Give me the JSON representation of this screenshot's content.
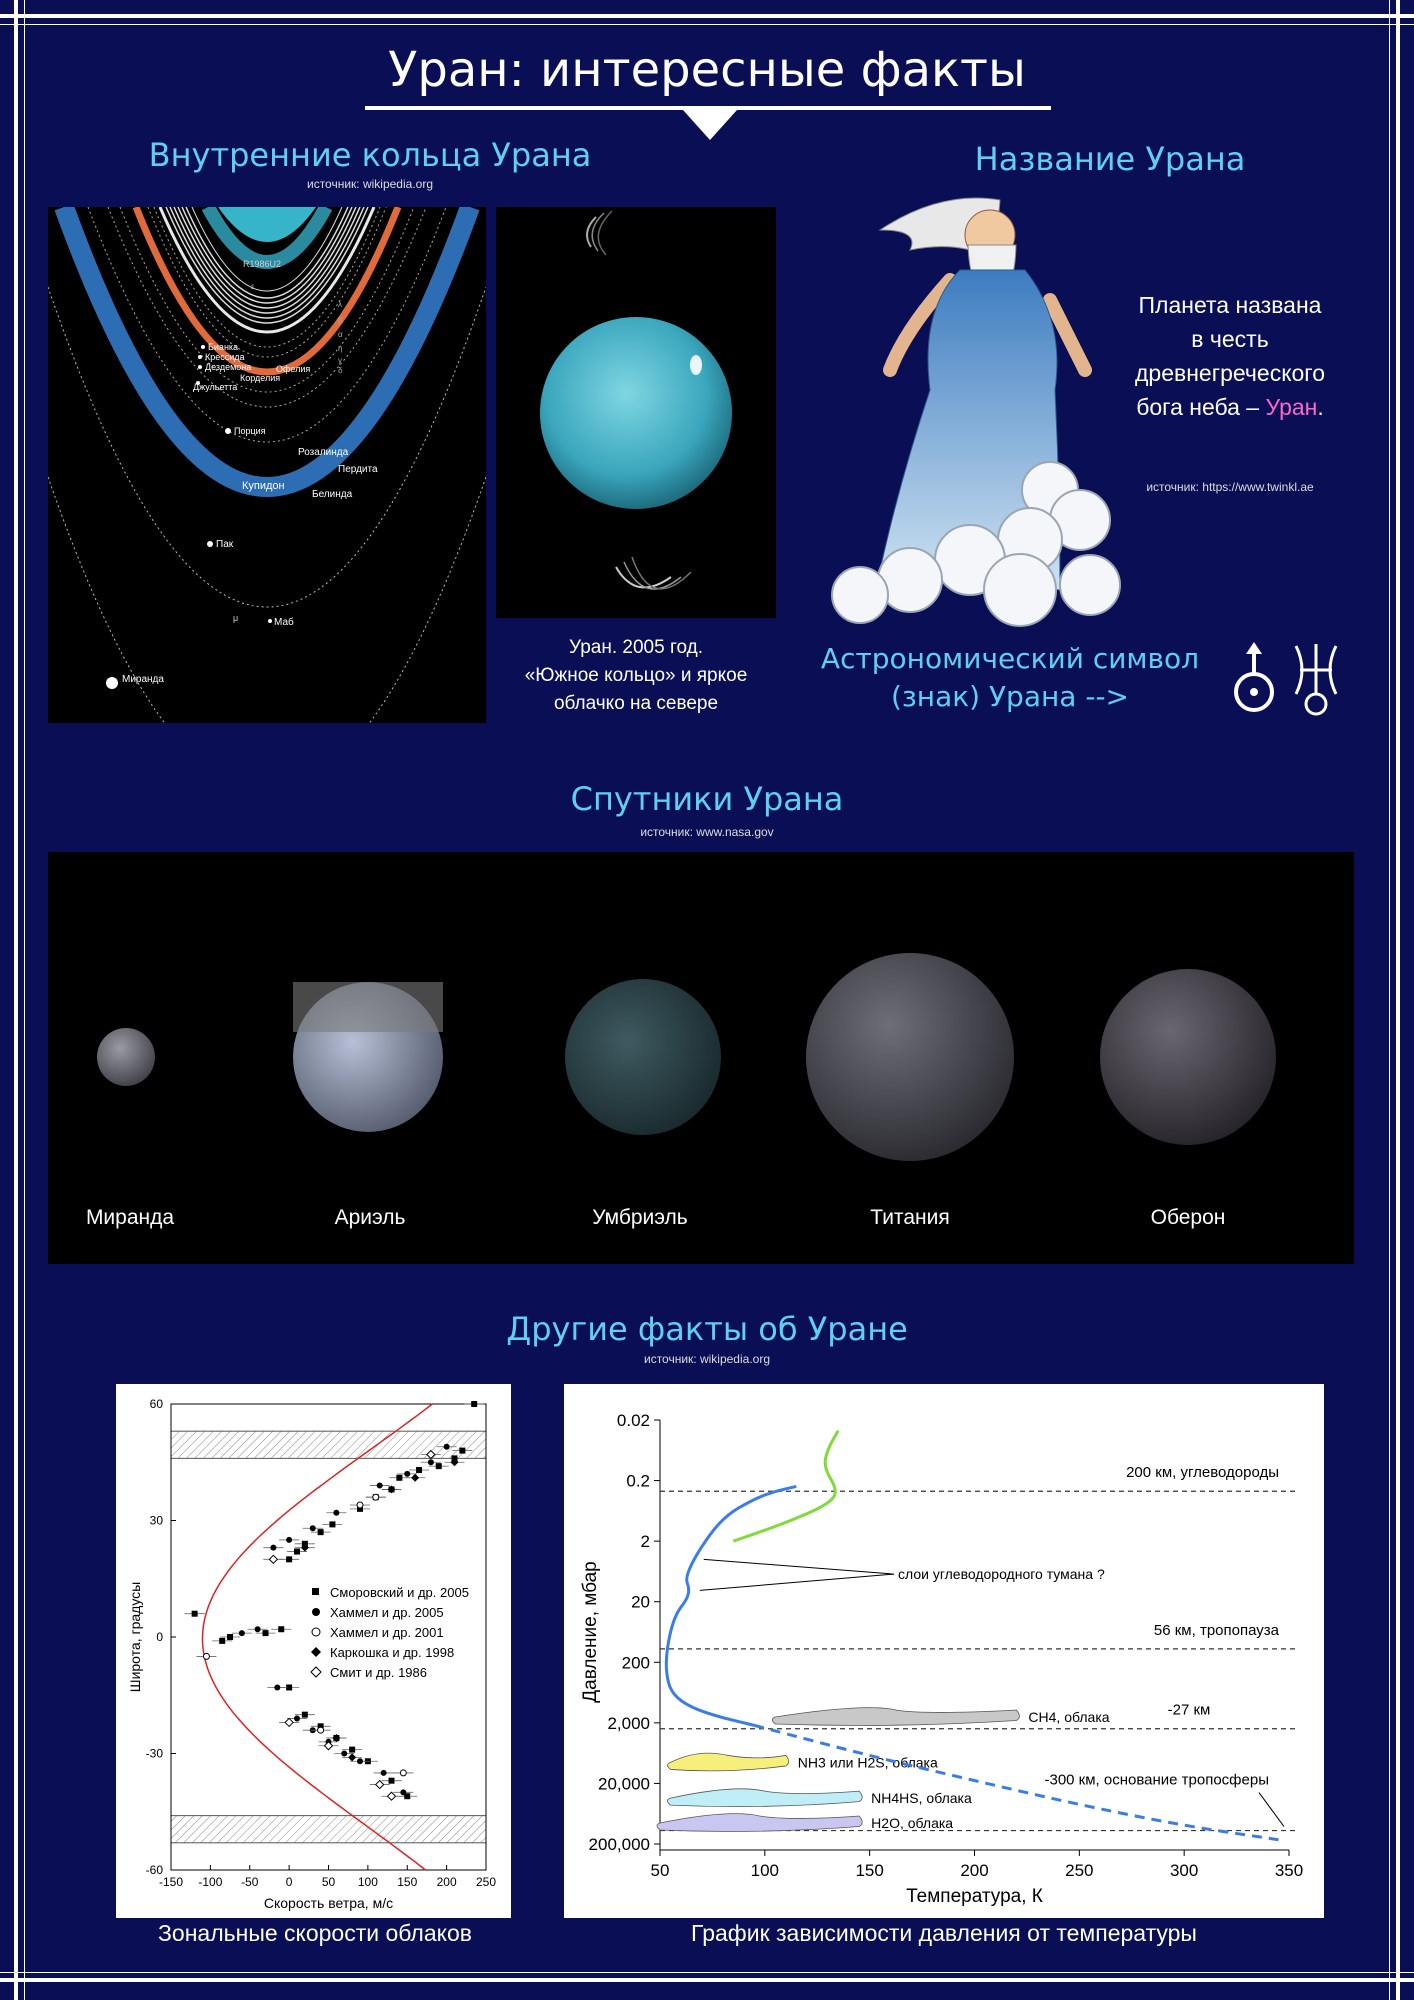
{
  "title": "Уран: интересные факты",
  "rings": {
    "heading": "Внутренние кольца Урана",
    "source": "источник: wikipedia.org",
    "labels": [
      "R1986U2",
      "Бианка",
      "Крессида",
      "Дездемона",
      "Джульетта",
      "Корделия",
      "Офелия",
      "Порция",
      "Розалинда",
      "Пердита",
      "Купидон",
      "Белинда",
      "Пак",
      "Маб",
      "Миранда"
    ],
    "greek": [
      "ε",
      "λ",
      "β",
      "α",
      "η",
      "γ",
      "δ",
      "μ"
    ]
  },
  "photo": {
    "caption_line1": "Уран. 2005 год.",
    "caption_line2": "«Южное кольцо» и яркое",
    "caption_line3": "облачко на севере"
  },
  "name": {
    "heading": "Название Урана",
    "text_line1": "Планета названа",
    "text_line2": "в честь",
    "text_line3": "древнегреческого",
    "text_line4_prefix": "бога неба – ",
    "text_line4_highlight": "Уран",
    "text_line4_suffix": ".",
    "source": "источник: https://www.twinkl.ae",
    "highlight_color": "#ff66cc"
  },
  "symbol": {
    "text_line1": "Астрономический символ",
    "text_line2": "(знак) Урана -->"
  },
  "moons": {
    "heading": "Спутники Урана",
    "source": "источник: www.nasa.gov",
    "names": [
      "Миранда",
      "Ариэль",
      "Умбриэль",
      "Титания",
      "Оберон"
    ]
  },
  "facts": {
    "heading": "Другие факты об Уране",
    "source": "источник: wikipedia.org"
  },
  "chart_data": [
    {
      "type": "scatter",
      "caption": "Зональные скорости облаков",
      "xlabel": "Скорость ветра, м/с",
      "ylabel": "Широта, градусы",
      "xlim": [
        -150,
        250
      ],
      "ylim": [
        -60,
        60
      ],
      "xticks": [
        "-150",
        "-100",
        "-50",
        "0",
        "50",
        "100",
        "150",
        "200",
        "250"
      ],
      "yticks": [
        "60",
        "30",
        "0",
        "-30",
        "-60"
      ],
      "legend": [
        "Сморовский и др. 2005",
        "Хаммел и др. 2005",
        "Хаммел и др. 2001",
        "Каркошка и др. 1998",
        "Смит и др. 1986"
      ],
      "legend_position": "right",
      "hatched_bands": [
        [
          46,
          53
        ],
        [
          -53,
          -46
        ]
      ],
      "model_curve": {
        "x": [
          -110,
          -95,
          -50,
          5,
          60,
          120,
          170,
          200,
          200,
          160,
          100,
          45,
          -5,
          -60,
          -100,
          -110
        ],
        "y": [
          0,
          14,
          25,
          30,
          34,
          40,
          46,
          54,
          60,
          -10,
          -25,
          -30,
          -32,
          -37,
          -43,
          -50
        ]
      },
      "series": [
        {
          "name": "Сморовский и др. 2005",
          "marker": "square",
          "x": [
            235,
            220,
            210,
            190,
            165,
            140,
            130,
            110,
            90,
            55,
            40,
            20,
            10,
            0,
            -10,
            -30,
            -75,
            -85,
            -120,
            0,
            20,
            40,
            60,
            80,
            100,
            130,
            150
          ],
          "y": [
            60,
            48,
            46,
            44,
            43,
            41,
            38,
            36,
            33,
            29,
            27,
            24,
            22,
            20,
            2,
            1,
            0,
            -1,
            6,
            -13,
            -20,
            -23,
            -26,
            -29,
            -32,
            -37,
            -41
          ]
        },
        {
          "name": "Хаммел и др. 2005",
          "marker": "circle",
          "x": [
            200,
            180,
            150,
            115,
            60,
            30,
            0,
            -20,
            -40,
            -60,
            -15,
            10,
            30,
            50,
            70,
            90,
            120,
            145
          ],
          "y": [
            49,
            45,
            42,
            39,
            32,
            28,
            25,
            23,
            2,
            1,
            -13,
            -21,
            -24,
            -27,
            -30,
            -32,
            -35,
            -40
          ]
        },
        {
          "name": "Хаммел и др. 2001",
          "marker": "circle-open",
          "x": [
            -105,
            110,
            90,
            145,
            40
          ],
          "y": [
            -5,
            36,
            34,
            -35,
            -24
          ]
        },
        {
          "name": "Каркошка и др. 1998",
          "marker": "diamond",
          "x": [
            210,
            160,
            130,
            20,
            60,
            80
          ],
          "y": [
            45,
            41,
            38,
            23,
            -26,
            -31
          ]
        },
        {
          "name": "Смит и др. 1986",
          "marker": "diamond-open",
          "x": [
            180,
            -20,
            0,
            50,
            115,
            130
          ],
          "y": [
            47,
            20,
            -22,
            -28,
            -38,
            -41
          ]
        }
      ]
    },
    {
      "type": "line",
      "caption": "График зависимости давления от температуры",
      "xlabel": "Температура, К",
      "ylabel": "Давление, мбар",
      "xlim": [
        50,
        350
      ],
      "ylim_log": [
        0.02,
        200000
      ],
      "xticks": [
        "50",
        "100",
        "150",
        "200",
        "250",
        "300",
        "350"
      ],
      "yticks": [
        "0.02",
        "0.2",
        "2",
        "20",
        "200",
        "2,000",
        "20,000",
        "200,000"
      ],
      "annotations": [
        "200 км, углеводороды",
        "56 км, тропопауза",
        "-27 км",
        "-300 км, основание тропосферы",
        "слои углеводородного тумана ?"
      ],
      "levels": [
        {
          "label": "200 км, углеводороды",
          "pressure": 0.3
        },
        {
          "label": "56 км, тропопауза",
          "pressure": 120
        },
        {
          "label": "-27 км",
          "pressure": 2500
        },
        {
          "label": "-300 км, основание тропосферы",
          "pressure": 120000
        }
      ],
      "clouds": [
        {
          "label": "CH4, облака",
          "pressure": 1600,
          "x": [
            105,
            220
          ],
          "color": "#c8c8c8"
        },
        {
          "label": "NH3 или H2S, облака",
          "pressure": 9000,
          "x": [
            55,
            110
          ],
          "color": "#f6f07a"
        },
        {
          "label": "NH4HS, облака",
          "pressure": 35000,
          "x": [
            55,
            145
          ],
          "color": "#bfeef6"
        },
        {
          "label": "H2O, облака",
          "pressure": 90000,
          "x": [
            50,
            145
          ],
          "color": "#c9c6f2"
        }
      ],
      "series": [
        {
          "name": "",
          "color": "#3a7de8",
          "temperature": [
            115,
            105,
            95,
            80,
            68,
            62,
            64,
            63,
            58,
            55,
            53,
            53,
            55,
            62,
            75,
            95
          ],
          "pressure": [
            0.25,
            0.3,
            0.4,
            0.8,
            3,
            8,
            12,
            18,
            30,
            60,
            150,
            300,
            600,
            1000,
            1500,
            2200
          ]
        },
        {
          "name": "",
          "color": "#3a7de8",
          "dashed": true,
          "temperature": [
            95,
            150,
            200,
            250,
            300,
            345
          ],
          "pressure": [
            2200,
            7000,
            18000,
            45000,
            100000,
            170000
          ]
        },
        {
          "name": "",
          "color": "#7edb3a",
          "temperature": [
            135,
            130,
            128,
            135,
            130,
            110,
            85
          ],
          "pressure": [
            0.03,
            0.06,
            0.12,
            0.3,
            0.5,
            1.0,
            2.0
          ]
        }
      ]
    }
  ]
}
